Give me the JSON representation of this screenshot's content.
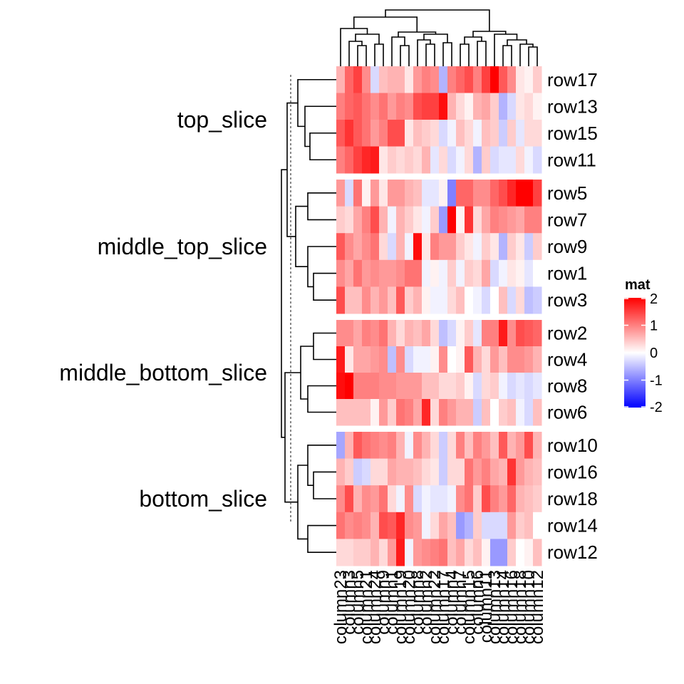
{
  "chart_data": {
    "type": "heatmap",
    "matrix_name": "mat",
    "slices": [
      {
        "name": "top_slice",
        "rows": [
          "row17",
          "row13",
          "row15",
          "row11"
        ]
      },
      {
        "name": "middle_top_slice",
        "rows": [
          "row5",
          "row7",
          "row9",
          "row1",
          "row3"
        ]
      },
      {
        "name": "middle_bottom_slice",
        "rows": [
          "row2",
          "row4",
          "row8",
          "row6"
        ]
      },
      {
        "name": "bottom_slice",
        "rows": [
          "row10",
          "row16",
          "row18",
          "row14",
          "row12"
        ]
      }
    ],
    "columns": [
      "column23",
      "column3",
      "column5",
      "column21",
      "column24",
      "column9",
      "column1",
      "column19",
      "column20",
      "column8",
      "column2",
      "column22",
      "column17",
      "column4",
      "column7",
      "column15",
      "column6",
      "column11",
      "column13",
      "column14",
      "column16",
      "column18",
      "column10",
      "column12"
    ],
    "color_scale": {
      "low": "#0000FF",
      "mid": "#FFFFFF",
      "high": "#FF0000",
      "domain": [
        -2,
        0,
        2
      ],
      "ticks": [
        2,
        1,
        0,
        -1,
        -2
      ],
      "tick_labels": [
        "2",
        "1",
        "0",
        "-1",
        "-2"
      ]
    },
    "values": [
      [
        0.6,
        1.2,
        1.5,
        0.9,
        -0.3,
        0.5,
        0.6,
        0.6,
        0.2,
        0.8,
        1.0,
        0.9,
        -0.6,
        1.0,
        1.2,
        1.4,
        1.0,
        1.5,
        2.1,
        1.3,
        0.9,
        0.2,
        0.1,
        0.4
      ],
      [
        1.0,
        1.2,
        1.3,
        1.1,
        0.9,
        1.1,
        0.8,
        1.0,
        0.9,
        1.4,
        1.5,
        1.5,
        1.9,
        0.6,
        0.3,
        0.1,
        0.6,
        0.7,
        0.4,
        -0.6,
        -0.3,
        0.2,
        0.3,
        0.1
      ],
      [
        1.3,
        1.6,
        1.3,
        1.1,
        0.8,
        1.0,
        1.4,
        1.4,
        0.2,
        0.5,
        0.4,
        0.3,
        -0.3,
        -0.1,
        0.5,
        0.3,
        -0.1,
        0.5,
        0.4,
        -0.4,
        0.4,
        -0.2,
        0.3,
        0.3
      ],
      [
        1.0,
        1.2,
        1.5,
        1.7,
        1.8,
        0.2,
        0.4,
        0.3,
        0.4,
        0.3,
        0.6,
        -0.2,
        0.3,
        -0.3,
        -0.1,
        0.3,
        -0.6,
        0.4,
        -0.3,
        -0.2,
        -0.2,
        0.3,
        -0.1,
        -0.3
      ],
      [
        0.8,
        -0.3,
        1.1,
        0.1,
        0.8,
        0.2,
        0.8,
        0.8,
        0.6,
        0.5,
        -0.2,
        -0.2,
        0.1,
        -1.0,
        1.2,
        1.2,
        0.9,
        0.9,
        1.2,
        1.4,
        1.7,
        2.2,
        2.1,
        1.5
      ],
      [
        0.4,
        0.3,
        0.7,
        1.0,
        1.4,
        0.6,
        -0.1,
        0.6,
        0.4,
        0.2,
        -0.1,
        0.4,
        -0.8,
        2.0,
        0.1,
        1.6,
        0.3,
        0.7,
        1.0,
        0.9,
        0.8,
        0.7,
        1.0,
        1.0
      ],
      [
        1.3,
        0.9,
        0.7,
        0.9,
        1.1,
        0.3,
        -0.3,
        0.6,
        -0.1,
        1.9,
        0.2,
        1.0,
        0.8,
        0.8,
        0.4,
        0.2,
        -0.1,
        0.4,
        0.2,
        -0.6,
        0.4,
        0.2,
        -0.4,
        0.4
      ],
      [
        0.9,
        0.7,
        1.1,
        0.8,
        0.9,
        0.8,
        0.8,
        0.9,
        1.1,
        1.1,
        -0.1,
        0.1,
        -0.1,
        0.4,
        -0.1,
        0.4,
        0.3,
        0.7,
        -0.3,
        -0.1,
        0.2,
        0.1,
        -0.2,
        0.0
      ],
      [
        1.4,
        0.5,
        0.5,
        0.9,
        0.6,
        0.8,
        0.5,
        1.3,
        0.4,
        0.6,
        0.1,
        -0.1,
        -0.1,
        0.3,
        0.5,
        0.0,
        -0.1,
        -0.3,
        0.0,
        0.5,
        -0.3,
        0.3,
        -0.5,
        -0.4
      ],
      [
        0.9,
        0.9,
        0.7,
        1.0,
        0.9,
        1.1,
        0.6,
        0.3,
        0.6,
        0.5,
        0.7,
        0.3,
        -0.5,
        -0.3,
        0.1,
        0.4,
        -0.2,
        1.0,
        1.0,
        1.8,
        0.9,
        1.4,
        1.3,
        1.2
      ],
      [
        1.8,
        0.2,
        0.7,
        0.7,
        0.8,
        0.9,
        -0.5,
        0.9,
        -0.3,
        -0.1,
        -0.1,
        0.1,
        0.9,
        0.0,
        0.1,
        1.3,
        0.6,
        0.3,
        0.8,
        0.5,
        0.9,
        0.9,
        0.8,
        0.6
      ],
      [
        1.9,
        2.1,
        1.0,
        1.0,
        1.0,
        0.9,
        0.9,
        0.8,
        0.8,
        0.8,
        0.5,
        0.5,
        0.3,
        0.3,
        0.4,
        0.1,
        -0.3,
        0.3,
        0.4,
        -0.1,
        -0.3,
        -0.2,
        -0.3,
        -0.2
      ],
      [
        0.5,
        0.5,
        0.5,
        0.5,
        0.1,
        0.8,
        0.4,
        1.1,
        1.0,
        0.7,
        1.7,
        0.3,
        1.0,
        0.8,
        0.6,
        0.6,
        -0.4,
        0.5,
        0.0,
        0.4,
        0.5,
        -0.1,
        -0.3,
        0.5
      ],
      [
        -0.7,
        0.6,
        1.3,
        1.1,
        1.0,
        0.9,
        1.0,
        0.6,
        -0.1,
        0.9,
        0.6,
        0.3,
        -0.4,
        0.3,
        1.0,
        0.5,
        1.0,
        0.8,
        0.5,
        1.3,
        0.6,
        0.8,
        1.4,
        0.6
      ],
      [
        0.6,
        0.4,
        -0.4,
        -0.3,
        0.3,
        0.3,
        0.7,
        0.6,
        0.6,
        0.5,
        0.3,
        0.2,
        -0.4,
        0.3,
        0.3,
        1.1,
        0.8,
        1.0,
        0.7,
        0.6,
        1.6,
        0.8,
        0.6,
        0.5
      ],
      [
        0.9,
        1.4,
        0.6,
        0.9,
        0.8,
        1.1,
        0.3,
        -0.1,
        0.9,
        -0.3,
        -0.1,
        -0.2,
        -0.2,
        -0.1,
        0.9,
        1.1,
        0.4,
        1.4,
        1.0,
        0.8,
        1.2,
        0.6,
        0.5,
        0.4
      ],
      [
        1.1,
        0.9,
        1.0,
        0.9,
        0.6,
        1.4,
        1.3,
        1.7,
        0.9,
        0.8,
        -0.1,
        0.3,
        0.7,
        0.5,
        -0.8,
        -0.6,
        0.4,
        -0.3,
        -0.3,
        -0.3,
        0.8,
        0.4,
        0.5,
        0.0
      ],
      [
        0.3,
        0.3,
        0.4,
        0.4,
        0.6,
        0.3,
        0.8,
        1.8,
        -0.1,
        0.8,
        0.9,
        1.0,
        1.1,
        0.5,
        0.7,
        0.3,
        0.5,
        0.1,
        -0.8,
        -0.8,
        0.4,
        0.0,
        0.1,
        0.5
      ]
    ]
  }
}
